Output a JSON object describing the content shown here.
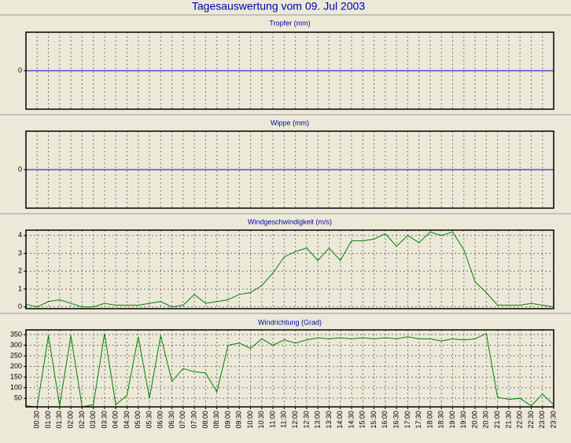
{
  "title": "Tagesauswertung vom 09. Jul 2003",
  "chart_data": [
    {
      "type": "line",
      "title": "Tropfer (mm)",
      "ylim": [
        -1,
        1
      ],
      "yticks": [
        0
      ],
      "baseline_color": "#0000cc",
      "grid": false,
      "series": []
    },
    {
      "type": "line",
      "title": "Wippe (mm)",
      "ylim": [
        -1,
        1
      ],
      "yticks": [
        0
      ],
      "baseline_color": "#0000cc",
      "grid": false,
      "series": []
    },
    {
      "type": "line",
      "title": "Windgeschwindigkeit (m/s)",
      "ylim": [
        -0.1,
        4.3
      ],
      "yticks": [
        0,
        1,
        2,
        3,
        4
      ],
      "grid": true,
      "series": [
        {
          "color": "#008000",
          "values": [
            0.15,
            0,
            0.3,
            0.4,
            0.2,
            0,
            0,
            0.2,
            0.1,
            0.1,
            0.1,
            0.2,
            0.3,
            0,
            0.1,
            0.7,
            0.2,
            0.3,
            0.4,
            0.7,
            0.8,
            1.2,
            1.9,
            2.8,
            3.1,
            3.3,
            2.6,
            3.3,
            2.6,
            3.7,
            3.7,
            3.8,
            4.1,
            3.4,
            4.0,
            3.6,
            4.2,
            4.0,
            4.2,
            3.2,
            1.4,
            0.8,
            0.1,
            0.1,
            0.1,
            0.2,
            0.1,
            0
          ]
        }
      ]
    },
    {
      "type": "line",
      "title": "Windrichtung (Grad)",
      "ylim": [
        10,
        372
      ],
      "yticks": [
        50,
        100,
        150,
        200,
        250,
        300,
        350
      ],
      "grid": true,
      "categories": [
        null,
        "00:30",
        "01:00",
        "01:30",
        "02:00",
        "02:30",
        "03:00",
        "03:30",
        "04:00",
        "04:30",
        "05:00",
        "05:30",
        "06:00",
        "06:30",
        "07:00",
        "07:30",
        "08:00",
        "08:30",
        "09:00",
        "09:30",
        "10:00",
        "10:30",
        "11:00",
        "11:30",
        "12:00",
        "12:30",
        "13:00",
        "13:30",
        "14:00",
        "14:30",
        "15:00",
        "15:30",
        "16:00",
        "16:30",
        "17:00",
        "17:30",
        "18:00",
        "18:30",
        "19:00",
        "19:30",
        "20:00",
        "20:30",
        "21:00",
        "21:30",
        "22:00",
        "22:30",
        "23:00",
        "23:30"
      ],
      "series": [
        {
          "color": "#008000",
          "values": [
            15,
            10,
            345,
            15,
            345,
            10,
            20,
            355,
            20,
            65,
            340,
            50,
            345,
            130,
            190,
            175,
            170,
            80,
            300,
            310,
            285,
            330,
            300,
            325,
            310,
            325,
            335,
            330,
            335,
            330,
            335,
            330,
            335,
            330,
            340,
            330,
            330,
            320,
            330,
            325,
            330,
            355,
            55,
            45,
            50,
            15,
            70,
            20
          ]
        }
      ]
    }
  ]
}
